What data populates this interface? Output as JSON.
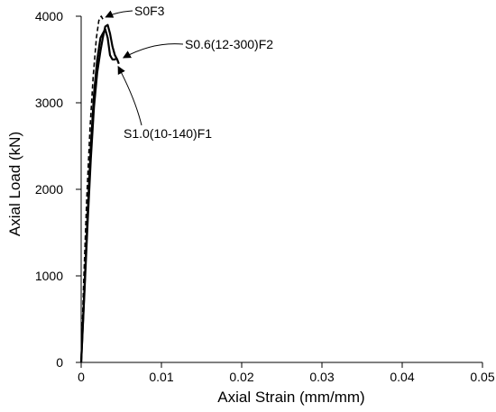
{
  "chart_data": {
    "type": "line",
    "title": "",
    "xlabel": "Axial Strain (mm/mm)",
    "ylabel": "Axial Load (kN)",
    "xlim": [
      0,
      0.05
    ],
    "ylim": [
      0,
      4000
    ],
    "x_ticks": [
      0,
      0.01,
      0.02,
      0.03,
      0.04,
      0.05
    ],
    "x_tick_labels": [
      "0",
      "0.01",
      "0.02",
      "0.03",
      "0.04",
      "0.05"
    ],
    "y_ticks": [
      0,
      1000,
      2000,
      3000,
      4000
    ],
    "y_tick_labels": [
      "0",
      "1000",
      "2000",
      "3000",
      "4000"
    ],
    "grid": false,
    "legend": "none",
    "series": [
      {
        "name": "S0F3",
        "line_style": "dashed",
        "x": [
          0,
          0.0003,
          0.0007,
          0.0011,
          0.0015,
          0.0019,
          0.0022,
          0.0025,
          0.0028
        ],
        "y": [
          0,
          900,
          1900,
          2700,
          3300,
          3750,
          3950,
          4000,
          3950
        ]
      },
      {
        "name": "S0.6(12-300)F2",
        "line_style": "solid",
        "x": [
          0,
          0.0004,
          0.0008,
          0.0012,
          0.0016,
          0.002,
          0.0024,
          0.0027,
          0.003,
          0.0033,
          0.0036,
          0.0039,
          0.0042,
          0.0045
        ],
        "y": [
          0,
          850,
          1700,
          2500,
          3100,
          3500,
          3750,
          3800,
          3850,
          3750,
          3550,
          3500,
          3500,
          3520
        ]
      },
      {
        "name": "S1.0(10-140)F1",
        "line_style": "solid",
        "x": [
          0,
          0.0004,
          0.0008,
          0.0012,
          0.0016,
          0.002,
          0.0024,
          0.0027,
          0.003,
          0.0033,
          0.0036,
          0.0039,
          0.0042,
          0.0045,
          0.0047
        ],
        "y": [
          0,
          800,
          1600,
          2350,
          2950,
          3350,
          3600,
          3750,
          3880,
          3900,
          3800,
          3650,
          3550,
          3500,
          3450
        ]
      }
    ],
    "annotations": [
      {
        "text": "S0F3",
        "series": "S0F3",
        "x": 0.0026,
        "y": 4000
      },
      {
        "text": "S0.6(12-300)F2",
        "series": "S0.6(12-300)F2",
        "x": 0.0048,
        "y": 3520
      },
      {
        "text": "S1.0(10-140)F1",
        "series": "S1.0(10-140)F1",
        "x": 0.0045,
        "y": 3450
      }
    ]
  }
}
